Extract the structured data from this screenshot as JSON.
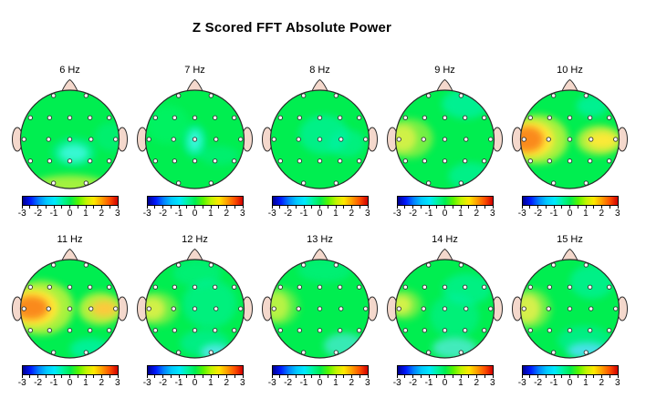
{
  "title": "Z Scored FFT Absolute Power",
  "chart_data": {
    "type": "heatmap",
    "subtype": "eeg-topomap-grid",
    "title": "Z Scored FFT Absolute Power",
    "rows": 2,
    "cols": 5,
    "units": "z-score",
    "colorbar": {
      "min": -3,
      "max": 3,
      "ticks": [
        "-3",
        "-2",
        "-1",
        "0",
        "1",
        "2",
        "3"
      ],
      "minor_tick_count": 13,
      "colormap": "jet",
      "gradient": [
        "#000090",
        "#0018FF",
        "#0080FF",
        "#00C8FF",
        "#00E8FF",
        "#00F5A0",
        "#00EE50",
        "#55F500",
        "#C0F500",
        "#FFE800",
        "#FFA000",
        "#FF5000",
        "#D00000"
      ]
    },
    "head": {
      "base_color": "#00EE50",
      "skin_color": "#F4D8CC",
      "outline_color": "#2A2A2A",
      "electrode_fill": "#FFFFFF",
      "electrode_ring": "#333333"
    },
    "montage": {
      "system": "10-20",
      "electrodes": [
        {
          "name": "Fp1",
          "x": -0.33,
          "y": 0.89
        },
        {
          "name": "Fp2",
          "x": 0.33,
          "y": 0.89
        },
        {
          "name": "F7",
          "x": -0.8,
          "y": 0.44
        },
        {
          "name": "F3",
          "x": -0.41,
          "y": 0.44
        },
        {
          "name": "Fz",
          "x": 0.0,
          "y": 0.44
        },
        {
          "name": "F4",
          "x": 0.41,
          "y": 0.44
        },
        {
          "name": "F8",
          "x": 0.8,
          "y": 0.44
        },
        {
          "name": "T3",
          "x": -0.93,
          "y": 0.0
        },
        {
          "name": "C3",
          "x": -0.43,
          "y": 0.0
        },
        {
          "name": "Cz",
          "x": 0.0,
          "y": 0.0
        },
        {
          "name": "C4",
          "x": 0.43,
          "y": 0.0
        },
        {
          "name": "T4",
          "x": 0.93,
          "y": 0.0
        },
        {
          "name": "T5",
          "x": -0.8,
          "y": -0.44
        },
        {
          "name": "P3",
          "x": -0.41,
          "y": -0.44
        },
        {
          "name": "Pz",
          "x": 0.0,
          "y": -0.44
        },
        {
          "name": "P4",
          "x": 0.41,
          "y": -0.44
        },
        {
          "name": "T6",
          "x": 0.8,
          "y": -0.44
        },
        {
          "name": "O1",
          "x": -0.33,
          "y": -0.89
        },
        {
          "name": "O2",
          "x": 0.33,
          "y": -0.89
        }
      ]
    },
    "maps": [
      {
        "label": "6 Hz",
        "blobs": [
          {
            "region": "central-parietal trough",
            "z": -0.8,
            "color": "#70FFF0",
            "x": 0.08,
            "y": -0.28,
            "rx": 0.3,
            "ry": 0.18,
            "opacity": 0.9
          },
          {
            "region": "central-parietal halo",
            "z": -0.4,
            "color": "#00F2C0",
            "x": 0.08,
            "y": -0.26,
            "rx": 0.45,
            "ry": 0.3,
            "opacity": 0.45
          },
          {
            "region": "occipital rim",
            "z": 0.8,
            "color": "#B4F23C",
            "x": 0.0,
            "y": -1.05,
            "rx": 0.9,
            "ry": 0.32,
            "opacity": 0.9
          },
          {
            "region": "right mid",
            "z": -0.3,
            "color": "#00F2B4",
            "x": 0.85,
            "y": 0.05,
            "rx": 0.35,
            "ry": 0.3,
            "opacity": 0.3
          }
        ]
      },
      {
        "label": "7 Hz",
        "blobs": [
          {
            "region": "vertex trough",
            "z": -1.0,
            "color": "#78FFF5",
            "x": 0.0,
            "y": -0.03,
            "rx": 0.13,
            "ry": 0.22,
            "opacity": 0.95
          },
          {
            "region": "vertex halo",
            "z": -0.5,
            "color": "#00F2C8",
            "x": 0.0,
            "y": -0.03,
            "rx": 0.24,
            "ry": 0.34,
            "opacity": 0.5
          },
          {
            "region": "left frontal",
            "z": 0.3,
            "color": "#00FA80",
            "x": -0.55,
            "y": 0.3,
            "rx": 0.45,
            "ry": 0.4,
            "opacity": 0.35
          },
          {
            "region": "right parietal",
            "z": -0.3,
            "color": "#00F2B4",
            "x": 0.5,
            "y": -0.33,
            "rx": 0.4,
            "ry": 0.2,
            "opacity": 0.3
          }
        ]
      },
      {
        "label": "8 Hz",
        "blobs": [
          {
            "region": "fronto-central trough",
            "z": -0.5,
            "color": "#00F2AC",
            "x": 0.08,
            "y": 0.1,
            "rx": 0.5,
            "ry": 0.4,
            "opacity": 0.6
          },
          {
            "region": "right central",
            "z": -0.4,
            "color": "#00F2AC",
            "x": 0.55,
            "y": -0.08,
            "rx": 0.38,
            "ry": 0.28,
            "opacity": 0.5
          }
        ]
      },
      {
        "label": "9 Hz",
        "blobs": [
          {
            "region": "left temporal peak",
            "z": 1.2,
            "color": "#F2EF5A",
            "x": -0.85,
            "y": 0.02,
            "rx": 0.28,
            "ry": 0.28,
            "opacity": 0.95
          },
          {
            "region": "left temporal halo",
            "z": 0.7,
            "color": "#C2F23E",
            "x": -0.72,
            "y": 0.02,
            "rx": 0.48,
            "ry": 0.4,
            "opacity": 0.6
          },
          {
            "region": "right frontal",
            "z": -0.5,
            "color": "#00F2B4",
            "x": 0.42,
            "y": 0.72,
            "rx": 0.48,
            "ry": 0.3,
            "opacity": 0.65
          },
          {
            "region": "right occipital",
            "z": -0.4,
            "color": "#00F2B4",
            "x": 0.52,
            "y": -0.75,
            "rx": 0.45,
            "ry": 0.28,
            "opacity": 0.55
          }
        ]
      },
      {
        "label": "10 Hz",
        "blobs": [
          {
            "region": "left temporal outer",
            "z": 1.0,
            "color": "#B8F23C",
            "x": -0.65,
            "y": 0.0,
            "rx": 0.62,
            "ry": 0.5,
            "opacity": 0.9
          },
          {
            "region": "left temporal",
            "z": 1.8,
            "color": "#FFE838",
            "x": -0.78,
            "y": 0.0,
            "rx": 0.47,
            "ry": 0.37,
            "opacity": 1
          },
          {
            "region": "left temporal core",
            "z": 2.4,
            "color": "#FA8A1E",
            "x": -0.86,
            "y": 0.0,
            "rx": 0.33,
            "ry": 0.26,
            "opacity": 1
          },
          {
            "region": "right temporal halo",
            "z": 0.9,
            "color": "#C8F23C",
            "x": 0.6,
            "y": -0.02,
            "rx": 0.46,
            "ry": 0.3,
            "opacity": 0.85
          },
          {
            "region": "right temporal",
            "z": 1.4,
            "color": "#FFE838",
            "x": 0.66,
            "y": -0.02,
            "rx": 0.32,
            "ry": 0.18,
            "opacity": 0.95
          },
          {
            "region": "right frontal",
            "z": -0.5,
            "color": "#00F2B4",
            "x": 0.45,
            "y": 0.68,
            "rx": 0.32,
            "ry": 0.22,
            "opacity": 0.65
          }
        ]
      },
      {
        "label": "11 Hz",
        "blobs": [
          {
            "region": "left temporal outer",
            "z": 1.0,
            "color": "#B8F23C",
            "x": -0.58,
            "y": 0.02,
            "rx": 0.66,
            "ry": 0.55,
            "opacity": 0.9
          },
          {
            "region": "left temporal",
            "z": 1.8,
            "color": "#FFE838",
            "x": -0.72,
            "y": 0.02,
            "rx": 0.5,
            "ry": 0.38,
            "opacity": 1
          },
          {
            "region": "left temporal core",
            "z": 2.3,
            "color": "#FA8A1E",
            "x": -0.78,
            "y": 0.02,
            "rx": 0.35,
            "ry": 0.24,
            "opacity": 1
          },
          {
            "region": "right temporal halo",
            "z": 0.9,
            "color": "#C8F23C",
            "x": 0.62,
            "y": 0.0,
            "rx": 0.44,
            "ry": 0.33,
            "opacity": 0.9
          },
          {
            "region": "right temporal",
            "z": 1.5,
            "color": "#FFC83C",
            "x": 0.7,
            "y": 0.0,
            "rx": 0.27,
            "ry": 0.17,
            "opacity": 0.95
          },
          {
            "region": "right occipital",
            "z": -0.5,
            "color": "#00F2B4",
            "x": 0.42,
            "y": -0.82,
            "rx": 0.42,
            "ry": 0.22,
            "opacity": 0.7
          }
        ]
      },
      {
        "label": "12 Hz",
        "blobs": [
          {
            "region": "left temporal",
            "z": 1.1,
            "color": "#F0F055",
            "x": -0.86,
            "y": 0.0,
            "rx": 0.27,
            "ry": 0.24,
            "opacity": 0.95
          },
          {
            "region": "left temporal halo",
            "z": 0.6,
            "color": "#C2F23E",
            "x": -0.76,
            "y": 0.0,
            "rx": 0.42,
            "ry": 0.34,
            "opacity": 0.5
          },
          {
            "region": "central-right trough",
            "z": -0.4,
            "color": "#00F2B4",
            "x": 0.3,
            "y": 0.1,
            "rx": 0.55,
            "ry": 0.5,
            "opacity": 0.45
          },
          {
            "region": "frontal trough",
            "z": -0.3,
            "color": "#00F2B4",
            "x": 0.05,
            "y": 0.72,
            "rx": 0.5,
            "ry": 0.28,
            "opacity": 0.35
          },
          {
            "region": "occipital halo",
            "z": -0.5,
            "color": "#00EFC0",
            "x": 0.2,
            "y": -0.7,
            "rx": 0.5,
            "ry": 0.28,
            "opacity": 0.45
          },
          {
            "region": "right occipital",
            "z": -0.9,
            "color": "#58E8F0",
            "x": 0.42,
            "y": -0.88,
            "rx": 0.3,
            "ry": 0.16,
            "opacity": 0.85
          }
        ]
      },
      {
        "label": "13 Hz",
        "blobs": [
          {
            "region": "left temporal",
            "z": 0.8,
            "color": "#D0F548",
            "x": -0.88,
            "y": 0.05,
            "rx": 0.26,
            "ry": 0.3,
            "opacity": 0.9
          },
          {
            "region": "left temporal halo",
            "z": 0.5,
            "color": "#B4F240",
            "x": -0.8,
            "y": 0.05,
            "rx": 0.38,
            "ry": 0.38,
            "opacity": 0.45
          },
          {
            "region": "frontal band",
            "z": -0.3,
            "color": "#00F2B4",
            "x": 0.1,
            "y": 0.78,
            "rx": 0.55,
            "ry": 0.25,
            "opacity": 0.35
          },
          {
            "region": "right occipital",
            "z": -0.8,
            "color": "#4FE8E0",
            "x": 0.5,
            "y": -0.75,
            "rx": 0.42,
            "ry": 0.25,
            "opacity": 0.7
          }
        ]
      },
      {
        "label": "14 Hz",
        "blobs": [
          {
            "region": "left temporal",
            "z": 1.0,
            "color": "#F2F258",
            "x": -0.88,
            "y": 0.08,
            "rx": 0.22,
            "ry": 0.2,
            "opacity": 0.95
          },
          {
            "region": "left temporal halo",
            "z": 0.6,
            "color": "#C2F23E",
            "x": -0.8,
            "y": 0.08,
            "rx": 0.34,
            "ry": 0.3,
            "opacity": 0.5
          },
          {
            "region": "right frontal trough",
            "z": -0.4,
            "color": "#00F2B4",
            "x": 0.45,
            "y": 0.4,
            "rx": 0.5,
            "ry": 0.32,
            "opacity": 0.5
          },
          {
            "region": "central trough",
            "z": -0.4,
            "color": "#00F2B4",
            "x": 0.2,
            "y": -0.15,
            "rx": 0.5,
            "ry": 0.45,
            "opacity": 0.4
          },
          {
            "region": "occipital",
            "z": -0.9,
            "color": "#5FE9E9",
            "x": 0.2,
            "y": -0.8,
            "rx": 0.45,
            "ry": 0.22,
            "opacity": 0.7
          }
        ]
      },
      {
        "label": "15 Hz",
        "blobs": [
          {
            "region": "left temporal",
            "z": 1.2,
            "color": "#F2EE58",
            "x": -0.86,
            "y": 0.0,
            "rx": 0.27,
            "ry": 0.3,
            "opacity": 0.95
          },
          {
            "region": "left temporal halo",
            "z": 0.7,
            "color": "#C8F240",
            "x": -0.78,
            "y": 0.0,
            "rx": 0.4,
            "ry": 0.4,
            "opacity": 0.5
          },
          {
            "region": "right frontal trough",
            "z": -0.4,
            "color": "#00F2B4",
            "x": 0.45,
            "y": 0.55,
            "rx": 0.45,
            "ry": 0.35,
            "opacity": 0.55
          },
          {
            "region": "occipital halo",
            "z": -0.6,
            "color": "#00EFC0",
            "x": 0.3,
            "y": -0.65,
            "rx": 0.55,
            "ry": 0.3,
            "opacity": 0.45
          },
          {
            "region": "right occipital",
            "z": -1.1,
            "color": "#50E0F2",
            "x": 0.35,
            "y": -0.85,
            "rx": 0.4,
            "ry": 0.16,
            "opacity": 0.9
          }
        ]
      }
    ]
  }
}
